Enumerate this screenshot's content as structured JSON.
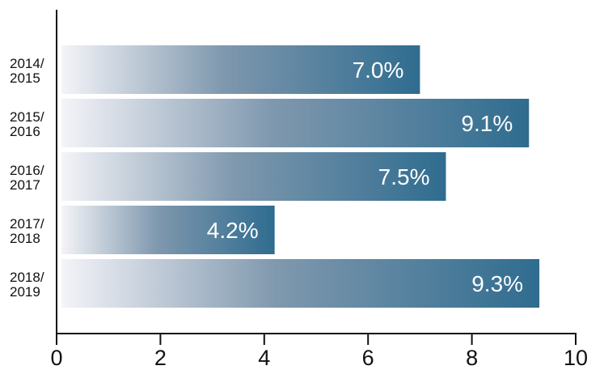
{
  "chart_data": {
    "type": "bar",
    "orientation": "horizontal",
    "categories": [
      "2014/\n2015",
      "2015/\n2016",
      "2016/\n2017",
      "2017/\n2018",
      "2018/\n2019"
    ],
    "values": [
      7.0,
      9.1,
      7.5,
      4.2,
      9.3
    ],
    "data_labels": [
      "7.0%",
      "9.1%",
      "7.5%",
      "4.2%",
      "9.3%"
    ],
    "xlim": [
      0,
      10
    ],
    "x_ticks": [
      0,
      2,
      4,
      6,
      8,
      10
    ],
    "title": "",
    "xlabel": "",
    "ylabel": "",
    "grid": false,
    "colors": {
      "bar_gradient_start": "#f4f4f8",
      "bar_gradient_mid": "#7f98ae",
      "bar_gradient_end": "#2f6c8f",
      "axis": "#111111"
    }
  }
}
